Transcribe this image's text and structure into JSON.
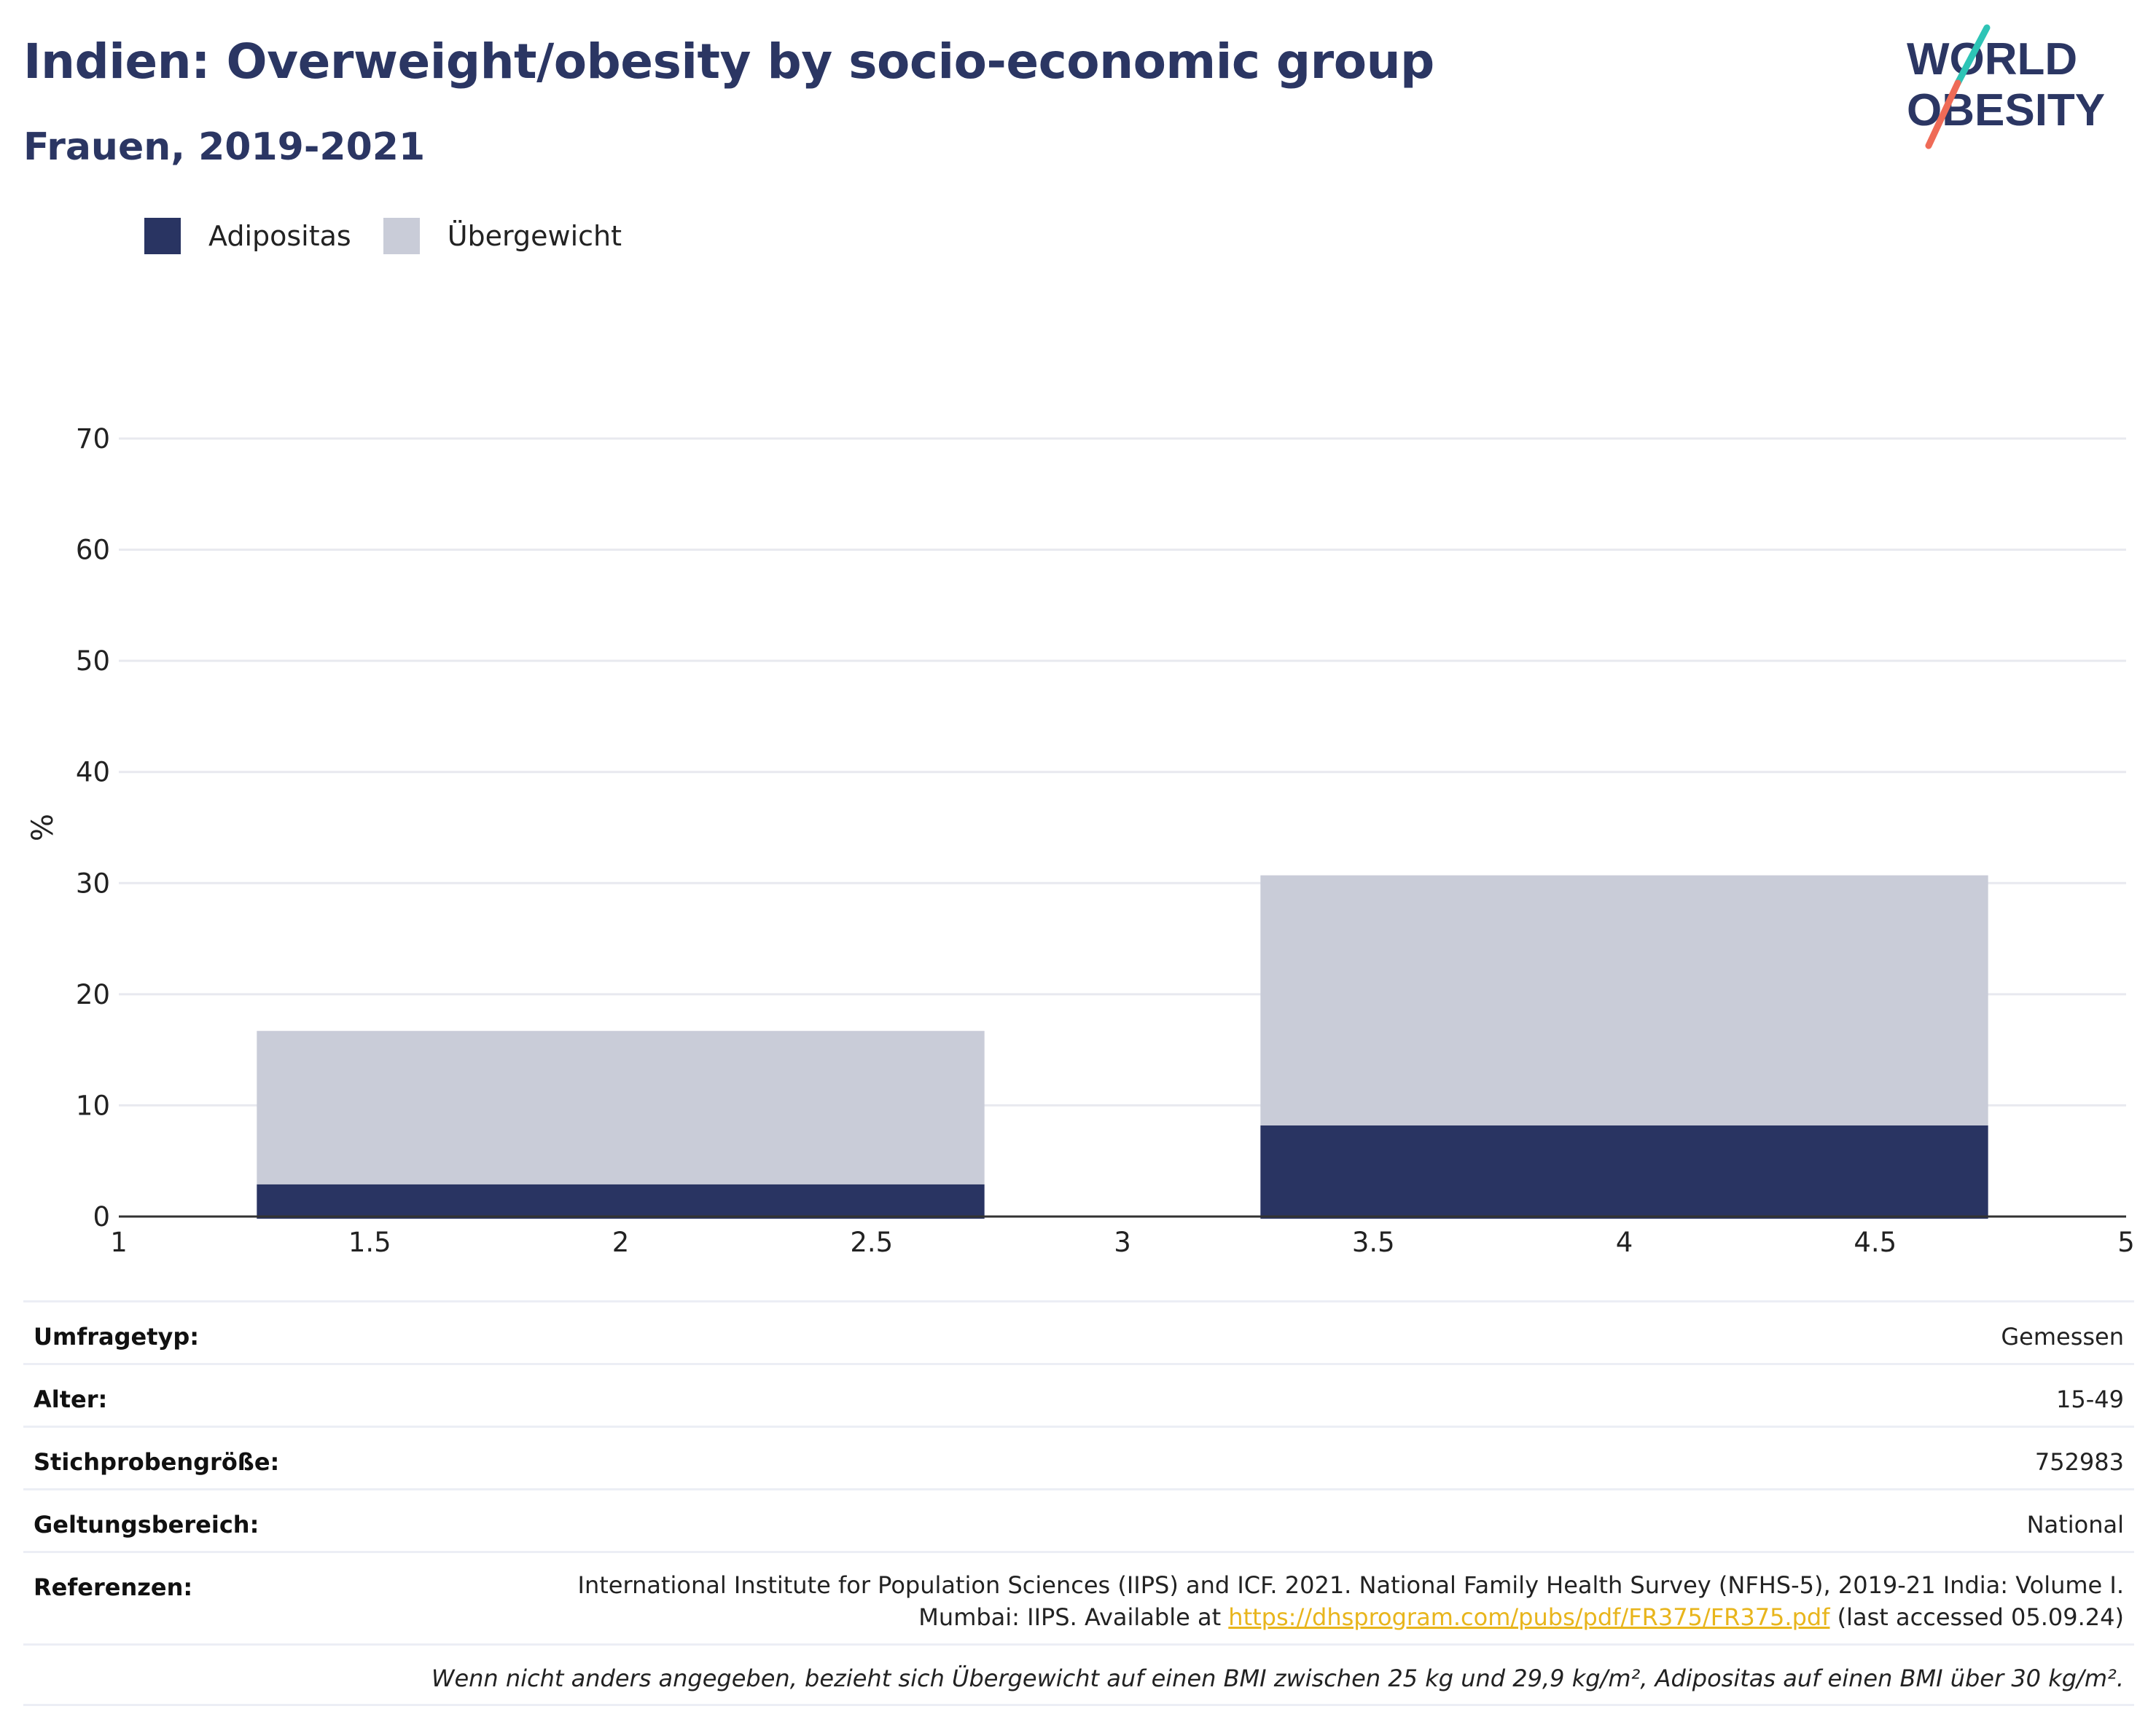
{
  "title": "Indien: Overweight/obesity by socio-economic group",
  "subtitle": "Frauen, 2019-2021",
  "logo": {
    "line1": "WORLD",
    "line2": "OBESITY"
  },
  "colors": {
    "obesity": "#293462",
    "overweight": "#c9ccd8",
    "title": "#2b3663",
    "grid": "#e8e9ef",
    "link": "#e8b51c"
  },
  "legend": [
    {
      "label": "Adipositas",
      "color": "#293462"
    },
    {
      "label": "Übergewicht",
      "color": "#c9ccd8"
    }
  ],
  "chart_data": {
    "type": "bar",
    "stacked": true,
    "ylabel": "%",
    "xlabel": "",
    "xlim": [
      1,
      5
    ],
    "ylim": [
      0,
      70
    ],
    "xticks": [
      1,
      1.5,
      2,
      2.5,
      3,
      3.5,
      4,
      4.5,
      5
    ],
    "xtick_labels": [
      "1",
      "1.5",
      "2",
      "2.5",
      "3",
      "3.5",
      "4",
      "4.5",
      "5"
    ],
    "yticks": [
      0,
      10,
      20,
      30,
      40,
      50,
      60,
      70
    ],
    "ytick_labels": [
      "0",
      "10",
      "20",
      "30",
      "40",
      "50",
      "60",
      "70"
    ],
    "bar_x": [
      2,
      4
    ],
    "bar_width": 1.45,
    "series": [
      {
        "name": "Adipositas",
        "values": [
          2.9,
          8.2
        ]
      },
      {
        "name": "Übergewicht",
        "values": [
          13.8,
          22.5
        ]
      }
    ],
    "grid": true,
    "legend_position": "top-left"
  },
  "meta": [
    {
      "label": "Umfragetyp:",
      "value": "Gemessen"
    },
    {
      "label": "Alter:",
      "value": "15-49"
    },
    {
      "label": "Stichprobengröße:",
      "value": "752983"
    },
    {
      "label": "Geltungsbereich:",
      "value": "National"
    }
  ],
  "references": {
    "label": "Referenzen:",
    "line1": "International Institute for Population Sciences (IIPS) and ICF. 2021. National Family Health Survey (NFHS-5), 2019-21 India: Volume I.",
    "line2_prefix": "Mumbai: IIPS. Available at ",
    "link": "https://dhsprogram.com/pubs/pdf/FR375/FR375.pdf",
    "line2_suffix": " (last accessed 05.09.24)"
  },
  "note": "Wenn nicht anders angegeben, bezieht sich Übergewicht auf einen BMI zwischen 25 kg und 29,9 kg/m², Adipositas auf einen BMI über 30 kg/m²."
}
